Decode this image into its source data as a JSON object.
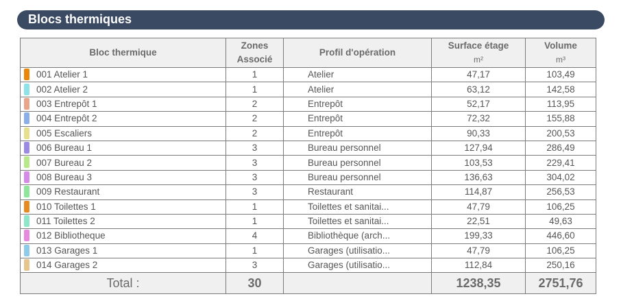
{
  "title": "Blocs thermiques",
  "headers": {
    "bloc": "Bloc thermique",
    "zones_line1": "Zones",
    "zones_line2": "Associé",
    "profil": "Profil d'opération",
    "surface": "Surface étage",
    "surface_unit": "m²",
    "volume": "Volume",
    "volume_unit": "m³"
  },
  "rows": [
    {
      "name": "001 Atelier 1",
      "color": "#e8870a",
      "zones": "1",
      "profil": "Atelier",
      "surface": "47,17",
      "volume": "103,49"
    },
    {
      "name": "002 Atelier 2",
      "color": "#8ee3e6",
      "zones": "1",
      "profil": "Atelier",
      "surface": "63,12",
      "volume": "142,58"
    },
    {
      "name": "003 Entrepôt 1",
      "color": "#e8a58a",
      "zones": "2",
      "profil": "Entrepôt",
      "surface": "52,17",
      "volume": "113,95"
    },
    {
      "name": "004 Entrepôt 2",
      "color": "#8aaee8",
      "zones": "2",
      "profil": "Entrepôt",
      "surface": "72,32",
      "volume": "155,88"
    },
    {
      "name": "005 Escaliers",
      "color": "#e6df8e",
      "zones": "2",
      "profil": "Entrepôt",
      "surface": "90,33",
      "volume": "200,53"
    },
    {
      "name": "006 Bureau 1",
      "color": "#9b89e4",
      "zones": "3",
      "profil": "Bureau personnel",
      "surface": "127,94",
      "volume": "286,49"
    },
    {
      "name": "007 Bureau 2",
      "color": "#b9e88a",
      "zones": "3",
      "profil": "Bureau personnel",
      "surface": "103,53",
      "volume": "229,41"
    },
    {
      "name": "008 Bureau 3",
      "color": "#d48ae6",
      "zones": "3",
      "profil": "Bureau personnel",
      "surface": "136,63",
      "volume": "304,02"
    },
    {
      "name": "009 Restaurant",
      "color": "#8ee69b",
      "zones": "3",
      "profil": "Restaurant",
      "surface": "114,87",
      "volume": "256,53"
    },
    {
      "name": "010 Toilettes 1",
      "color": "#e88a22",
      "zones": "1",
      "profil": "Toilettes et sanitai...",
      "surface": "47,79",
      "volume": "106,25"
    },
    {
      "name": "011 Toilettes 2",
      "color": "#8ee6c8",
      "zones": "1",
      "profil": "Toilettes et sanitai...",
      "surface": "22,51",
      "volume": "49,63"
    },
    {
      "name": "012 Bibliotheque",
      "color": "#e68ae0",
      "zones": "4",
      "profil": "Bibliothèque (arch...",
      "surface": "199,33",
      "volume": "446,60"
    },
    {
      "name": "013 Garages 1",
      "color": "#8ecbe8",
      "zones": "1",
      "profil": "Garages (utilisatio...",
      "surface": "47,79",
      "volume": "106,25"
    },
    {
      "name": "014 Garages 2",
      "color": "#e6c48e",
      "zones": "3",
      "profil": "Garages (utilisatio...",
      "surface": "112,84",
      "volume": "250,16"
    }
  ],
  "total": {
    "label": "Total :",
    "zones": "30",
    "surface": "1238,35",
    "volume": "2751,76"
  }
}
